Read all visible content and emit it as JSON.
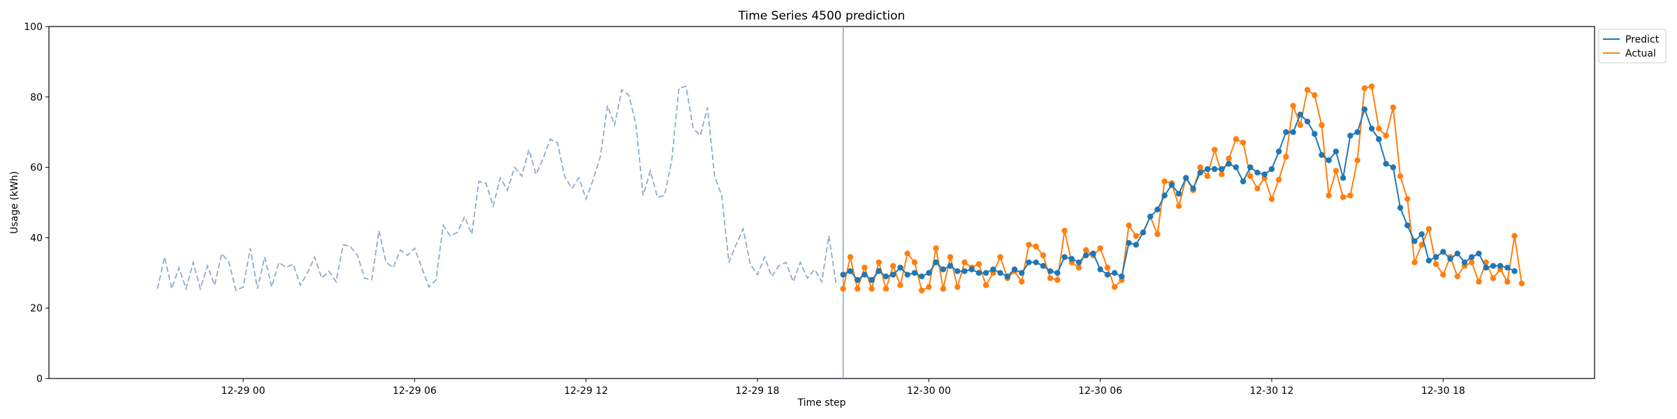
{
  "chart_data": {
    "type": "line",
    "title": "Time Series 4500 prediction",
    "xlabel": "Time step",
    "ylabel": "Usage (kWh)",
    "x_unit": "hour",
    "xlim": [
      -6.8,
      47.3
    ],
    "ylim": [
      0,
      100
    ],
    "x_ticks": [
      {
        "value": 0,
        "label": "12-29 00"
      },
      {
        "value": 6,
        "label": "12-29 06"
      },
      {
        "value": 12,
        "label": "12-29 12"
      },
      {
        "value": 18,
        "label": "12-29 18"
      },
      {
        "value": 24,
        "label": "12-30 00"
      },
      {
        "value": 30,
        "label": "12-30 06"
      },
      {
        "value": 36,
        "label": "12-30 12"
      },
      {
        "value": 42,
        "label": "12-30 18"
      }
    ],
    "y_ticks": [
      0,
      20,
      40,
      60,
      80,
      100
    ],
    "grid": false,
    "legend_position": "upper-right-outside",
    "split_x": 21.0,
    "history": {
      "color": "#8eaacb",
      "style": "dashed",
      "x_start": -3.0,
      "x_step": 0.25,
      "values": [
        25.5,
        34.5,
        25.5,
        31.5,
        25.5,
        33.0,
        25.5,
        32.0,
        26.5,
        35.5,
        33.0,
        25.0,
        26.0,
        37.0,
        25.5,
        34.5,
        26.0,
        33.0,
        31.5,
        32.5,
        26.5,
        30.0,
        34.5,
        28.5,
        30.5,
        27.5,
        38.0,
        37.5,
        35.0,
        28.5,
        28.0,
        42.0,
        33.0,
        31.5,
        36.5,
        35.0,
        37.0,
        31.5,
        26.0,
        28.0,
        43.5,
        40.5,
        41.5,
        46.0,
        41.0,
        56.0,
        55.5,
        49.0,
        57.0,
        53.5,
        60.0,
        57.5,
        65.0,
        58.0,
        62.5,
        68.0,
        67.0,
        57.5,
        54.0,
        57.0,
        51.0,
        56.5,
        63.0,
        77.5,
        72.0,
        82.0,
        80.5,
        72.0,
        52.0,
        59.0,
        51.5,
        52.0,
        62.0,
        82.5,
        83.0,
        71.0,
        69.0,
        77.0,
        57.5,
        52.0,
        33.0,
        38.0,
        42.5,
        32.5,
        29.5,
        34.5,
        29.0,
        32.0,
        33.0,
        27.5,
        33.0,
        28.5,
        31.0,
        27.5,
        40.5,
        27.0
      ]
    },
    "series": [
      {
        "name": "Predict",
        "color": "#1f77b4",
        "x_start": 21.0,
        "x_step": 0.25,
        "values": [
          29.5,
          30.5,
          28.0,
          29.5,
          28.0,
          30.5,
          29.0,
          29.5,
          31.5,
          29.5,
          30.0,
          29.0,
          30.0,
          33.0,
          31.0,
          32.0,
          30.5,
          30.5,
          31.0,
          30.0,
          30.0,
          31.0,
          30.0,
          29.0,
          31.0,
          30.0,
          33.0,
          33.0,
          32.0,
          30.5,
          30.0,
          34.5,
          34.0,
          33.0,
          35.0,
          35.5,
          31.0,
          29.5,
          30.0,
          29.0,
          38.5,
          38.0,
          41.5,
          46.0,
          48.0,
          52.0,
          55.0,
          52.5,
          57.0,
          54.0,
          58.5,
          59.5,
          59.5,
          59.5,
          61.0,
          60.0,
          56.0,
          60.0,
          58.5,
          58.0,
          59.5,
          64.5,
          70.0,
          70.0,
          75.0,
          73.0,
          69.5,
          63.5,
          62.0,
          64.5,
          57.0,
          69.0,
          70.0,
          76.5,
          71.0,
          68.0,
          61.0,
          60.0,
          48.5,
          43.5,
          39.0,
          41.0,
          33.5,
          34.5,
          36.0,
          34.0,
          35.5,
          33.0,
          34.5,
          35.5,
          31.5,
          32.0,
          32.0,
          31.5,
          30.5
        ]
      },
      {
        "name": "Actual",
        "color": "#ff7f0e",
        "x_start": 21.0,
        "x_step": 0.25,
        "values": [
          25.5,
          34.5,
          25.5,
          31.5,
          25.5,
          33.0,
          25.5,
          32.0,
          26.5,
          35.5,
          33.0,
          25.0,
          26.0,
          37.0,
          25.5,
          34.5,
          26.0,
          33.0,
          31.5,
          32.5,
          26.5,
          30.0,
          34.5,
          28.5,
          30.5,
          27.5,
          38.0,
          37.5,
          35.0,
          28.5,
          28.0,
          42.0,
          33.0,
          31.5,
          36.5,
          35.0,
          37.0,
          31.5,
          26.0,
          28.0,
          43.5,
          40.5,
          41.5,
          46.0,
          41.0,
          56.0,
          55.5,
          49.0,
          57.0,
          53.5,
          60.0,
          57.5,
          65.0,
          58.0,
          62.5,
          68.0,
          67.0,
          57.5,
          54.0,
          57.0,
          51.0,
          56.5,
          63.0,
          77.5,
          72.0,
          82.0,
          80.5,
          72.0,
          52.0,
          59.0,
          51.5,
          52.0,
          62.0,
          82.5,
          83.0,
          71.0,
          69.0,
          77.0,
          57.5,
          51.0,
          33.0,
          38.0,
          42.5,
          32.5,
          29.5,
          34.5,
          29.0,
          32.0,
          33.0,
          27.5,
          33.0,
          28.5,
          31.0,
          27.5,
          40.5,
          27.0
        ]
      }
    ]
  }
}
